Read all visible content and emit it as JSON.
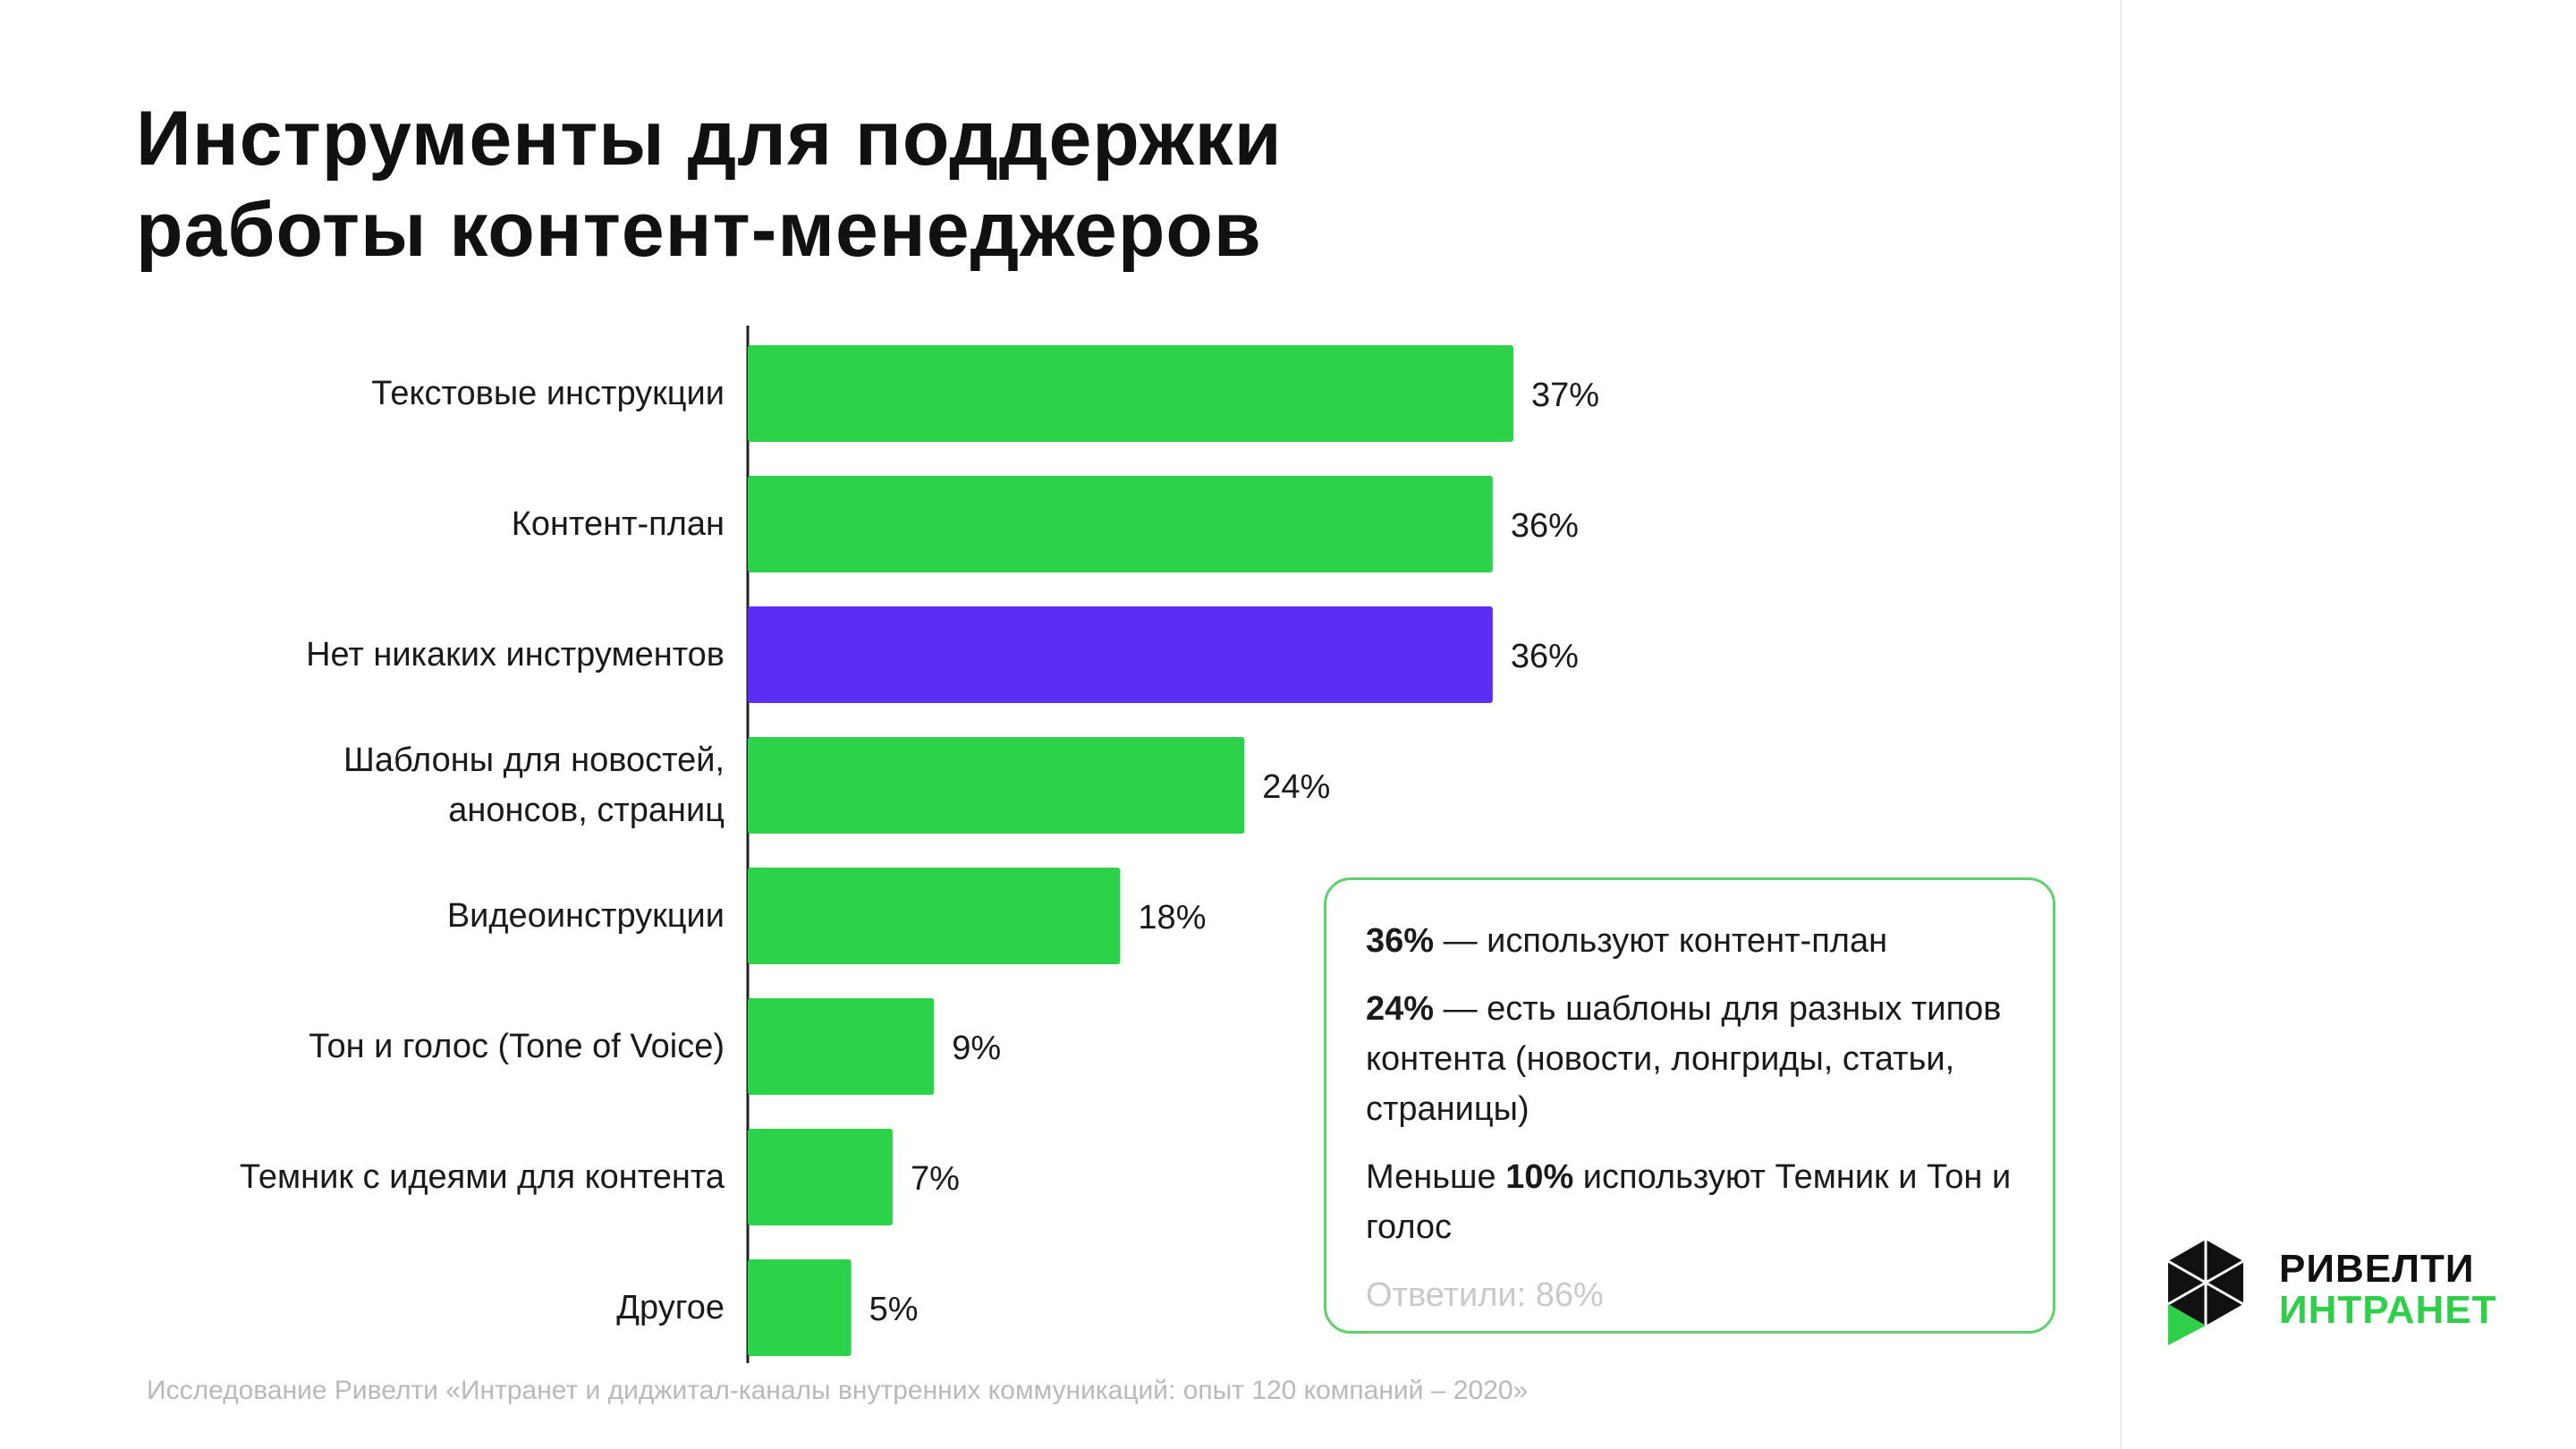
{
  "title": {
    "line1": "Инструменты для поддержки",
    "line2": "работы контент-менеджеров"
  },
  "chart_data": {
    "type": "bar",
    "orientation": "horizontal",
    "categories": [
      [
        "Текстовые инструкции"
      ],
      [
        "Контент-план"
      ],
      [
        "Нет никаких инструментов"
      ],
      [
        "Шаблоны для новостей,",
        "анонсов, страниц"
      ],
      [
        "Видеоинструкции"
      ],
      [
        "Тон и голос (Tone of Voice)"
      ],
      [
        "Темник с идеями для контента"
      ],
      [
        "Другое"
      ]
    ],
    "values": [
      37,
      36,
      36,
      24,
      18,
      9,
      7,
      5
    ],
    "value_labels": [
      "37%",
      "36%",
      "36%",
      "24%",
      "18%",
      "9%",
      "7%",
      "5%"
    ],
    "highlight_index": 2,
    "unit": "%",
    "xlim": [
      0,
      37
    ]
  },
  "colors": {
    "bar": "#2cd24a",
    "highlight": "#5b2ef7",
    "callout_border": "#5fd06a",
    "logo_green": "#2fcf4a"
  },
  "callout": {
    "item1_bold": "36%",
    "item1_text": " — используют контент-план",
    "item2_bold": "24%",
    "item2_text": " — есть шаблоны для разных типов контента (новости, лонгриды, статьи, страницы)",
    "item3_pre": "Меньше ",
    "item3_bold": "10%",
    "item3_post": " используют Темник и Тон и голос",
    "answered": "Ответили: 86%"
  },
  "source": "Исследование Ривелти «Интранет и диджитал-каналы внутренних коммуникаций: опыт 120 компаний – 2020»",
  "logo": {
    "icon": "hexagon-logo-icon",
    "line1": "РИВЕЛТИ",
    "line2": "ИНТРАНЕТ"
  }
}
